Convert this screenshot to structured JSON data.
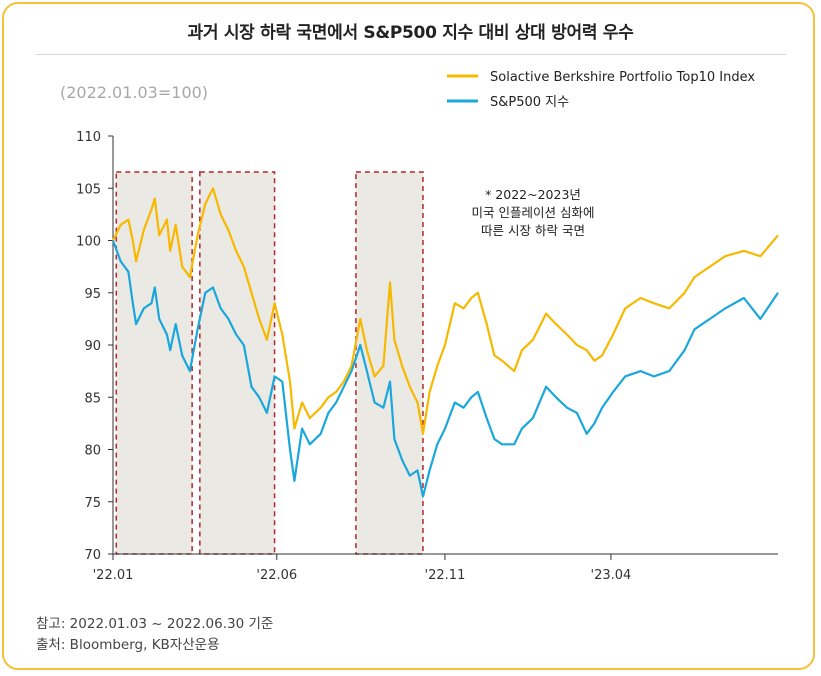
{
  "title": "과거 시장 하락 국면에서 S&P500 지수 대비 상대 방어력 우수",
  "footer": {
    "note": "참고: 2022.01.03 ~ 2022.06.30 기준",
    "source": "출처: Bloomberg, KB자산운용"
  },
  "colors": {
    "border": "#f7c23a",
    "berkshire": "#f7b900",
    "sp500": "#1aa7dc",
    "shade": "#ebe9e4",
    "shade_border": "#b0272d"
  },
  "chart_data": {
    "type": "line",
    "unit_label": "(2022.01.03=100)",
    "ylim": [
      70,
      110
    ],
    "yticks": [
      70,
      75,
      80,
      85,
      90,
      95,
      100,
      105,
      110
    ],
    "xlim": [
      "2022-01-03",
      "2023-08-31"
    ],
    "xticks": [
      {
        "date": "2022-01-03",
        "label": "'22.01"
      },
      {
        "date": "2022-06-01",
        "label": "'22.06"
      },
      {
        "date": "2022-11-01",
        "label": "'22.11"
      },
      {
        "date": "2023-04-01",
        "label": "'23.04"
      }
    ],
    "legend": "top-right",
    "series": [
      {
        "name": "Solactive Berkshire Portfolio Top10 Index",
        "points": [
          [
            "2022-01-03",
            100.0
          ],
          [
            "2022-01-10",
            101.5
          ],
          [
            "2022-01-17",
            102.0
          ],
          [
            "2022-01-21",
            100.0
          ],
          [
            "2022-01-24",
            98.0
          ],
          [
            "2022-01-31",
            101.0
          ],
          [
            "2022-02-07",
            103.0
          ],
          [
            "2022-02-10",
            104.0
          ],
          [
            "2022-02-14",
            100.5
          ],
          [
            "2022-02-21",
            102.0
          ],
          [
            "2022-02-24",
            99.0
          ],
          [
            "2022-03-01",
            101.5
          ],
          [
            "2022-03-07",
            97.5
          ],
          [
            "2022-03-14",
            96.5
          ],
          [
            "2022-03-21",
            100.5
          ],
          [
            "2022-03-28",
            103.5
          ],
          [
            "2022-04-04",
            105.0
          ],
          [
            "2022-04-11",
            102.5
          ],
          [
            "2022-04-18",
            101.0
          ],
          [
            "2022-04-25",
            99.0
          ],
          [
            "2022-05-02",
            97.5
          ],
          [
            "2022-05-09",
            95.0
          ],
          [
            "2022-05-16",
            92.5
          ],
          [
            "2022-05-23",
            90.5
          ],
          [
            "2022-05-30",
            94.0
          ],
          [
            "2022-06-06",
            91.0
          ],
          [
            "2022-06-13",
            86.5
          ],
          [
            "2022-06-17",
            82.0
          ],
          [
            "2022-06-24",
            84.5
          ],
          [
            "2022-07-01",
            83.0
          ],
          [
            "2022-07-11",
            84.0
          ],
          [
            "2022-07-18",
            85.0
          ],
          [
            "2022-07-25",
            85.5
          ],
          [
            "2022-08-01",
            86.5
          ],
          [
            "2022-08-08",
            88.0
          ],
          [
            "2022-08-16",
            92.5
          ],
          [
            "2022-08-22",
            89.5
          ],
          [
            "2022-08-29",
            87.0
          ],
          [
            "2022-09-06",
            88.0
          ],
          [
            "2022-09-12",
            96.0
          ],
          [
            "2022-09-16",
            90.5
          ],
          [
            "2022-09-23",
            88.0
          ],
          [
            "2022-09-30",
            86.0
          ],
          [
            "2022-10-07",
            84.5
          ],
          [
            "2022-10-12",
            81.5
          ],
          [
            "2022-10-18",
            85.5
          ],
          [
            "2022-10-25",
            88.0
          ],
          [
            "2022-11-01",
            90.0
          ],
          [
            "2022-11-10",
            94.0
          ],
          [
            "2022-11-18",
            93.5
          ],
          [
            "2022-11-25",
            94.5
          ],
          [
            "2022-12-01",
            95.0
          ],
          [
            "2022-12-09",
            92.0
          ],
          [
            "2022-12-16",
            89.0
          ],
          [
            "2022-12-23",
            88.5
          ],
          [
            "2023-01-03",
            87.5
          ],
          [
            "2023-01-10",
            89.5
          ],
          [
            "2023-01-20",
            90.5
          ],
          [
            "2023-02-01",
            93.0
          ],
          [
            "2023-02-10",
            92.0
          ],
          [
            "2023-02-20",
            91.0
          ],
          [
            "2023-03-01",
            90.0
          ],
          [
            "2023-03-10",
            89.5
          ],
          [
            "2023-03-17",
            88.5
          ],
          [
            "2023-03-24",
            89.0
          ],
          [
            "2023-04-03",
            91.0
          ],
          [
            "2023-04-14",
            93.5
          ],
          [
            "2023-04-28",
            94.5
          ],
          [
            "2023-05-10",
            94.0
          ],
          [
            "2023-05-24",
            93.5
          ],
          [
            "2023-06-07",
            95.0
          ],
          [
            "2023-06-16",
            96.5
          ],
          [
            "2023-06-30",
            97.5
          ],
          [
            "2023-07-14",
            98.5
          ],
          [
            "2023-07-31",
            99.0
          ],
          [
            "2023-08-15",
            98.5
          ],
          [
            "2023-08-31",
            100.5
          ]
        ]
      },
      {
        "name": "S&P500 지수",
        "points": [
          [
            "2022-01-03",
            100.0
          ],
          [
            "2022-01-10",
            98.0
          ],
          [
            "2022-01-17",
            97.0
          ],
          [
            "2022-01-21",
            94.0
          ],
          [
            "2022-01-24",
            92.0
          ],
          [
            "2022-01-31",
            93.5
          ],
          [
            "2022-02-07",
            94.0
          ],
          [
            "2022-02-10",
            95.5
          ],
          [
            "2022-02-14",
            92.5
          ],
          [
            "2022-02-21",
            91.0
          ],
          [
            "2022-02-24",
            89.5
          ],
          [
            "2022-03-01",
            92.0
          ],
          [
            "2022-03-07",
            89.0
          ],
          [
            "2022-03-14",
            87.5
          ],
          [
            "2022-03-21",
            91.5
          ],
          [
            "2022-03-28",
            95.0
          ],
          [
            "2022-04-04",
            95.5
          ],
          [
            "2022-04-11",
            93.5
          ],
          [
            "2022-04-18",
            92.5
          ],
          [
            "2022-04-25",
            91.0
          ],
          [
            "2022-05-02",
            90.0
          ],
          [
            "2022-05-09",
            86.0
          ],
          [
            "2022-05-16",
            85.0
          ],
          [
            "2022-05-23",
            83.5
          ],
          [
            "2022-05-30",
            87.0
          ],
          [
            "2022-06-06",
            86.5
          ],
          [
            "2022-06-13",
            80.0
          ],
          [
            "2022-06-17",
            77.0
          ],
          [
            "2022-06-24",
            82.0
          ],
          [
            "2022-07-01",
            80.5
          ],
          [
            "2022-07-11",
            81.5
          ],
          [
            "2022-07-18",
            83.5
          ],
          [
            "2022-07-25",
            84.5
          ],
          [
            "2022-08-01",
            86.0
          ],
          [
            "2022-08-08",
            87.5
          ],
          [
            "2022-08-16",
            90.0
          ],
          [
            "2022-08-22",
            87.5
          ],
          [
            "2022-08-29",
            84.5
          ],
          [
            "2022-09-06",
            84.0
          ],
          [
            "2022-09-12",
            86.5
          ],
          [
            "2022-09-16",
            81.0
          ],
          [
            "2022-09-23",
            79.0
          ],
          [
            "2022-09-30",
            77.5
          ],
          [
            "2022-10-07",
            78.0
          ],
          [
            "2022-10-12",
            75.5
          ],
          [
            "2022-10-18",
            78.0
          ],
          [
            "2022-10-25",
            80.5
          ],
          [
            "2022-11-01",
            82.0
          ],
          [
            "2022-11-10",
            84.5
          ],
          [
            "2022-11-18",
            84.0
          ],
          [
            "2022-11-25",
            85.0
          ],
          [
            "2022-12-01",
            85.5
          ],
          [
            "2022-12-09",
            83.0
          ],
          [
            "2022-12-16",
            81.0
          ],
          [
            "2022-12-23",
            80.5
          ],
          [
            "2023-01-03",
            80.5
          ],
          [
            "2023-01-10",
            82.0
          ],
          [
            "2023-01-20",
            83.0
          ],
          [
            "2023-02-01",
            86.0
          ],
          [
            "2023-02-10",
            85.0
          ],
          [
            "2023-02-20",
            84.0
          ],
          [
            "2023-03-01",
            83.5
          ],
          [
            "2023-03-10",
            81.5
          ],
          [
            "2023-03-17",
            82.5
          ],
          [
            "2023-03-24",
            84.0
          ],
          [
            "2023-04-03",
            85.5
          ],
          [
            "2023-04-14",
            87.0
          ],
          [
            "2023-04-28",
            87.5
          ],
          [
            "2023-05-10",
            87.0
          ],
          [
            "2023-05-24",
            87.5
          ],
          [
            "2023-06-07",
            89.5
          ],
          [
            "2023-06-16",
            91.5
          ],
          [
            "2023-06-30",
            92.5
          ],
          [
            "2023-07-14",
            93.5
          ],
          [
            "2023-07-31",
            94.5
          ],
          [
            "2023-08-15",
            92.5
          ],
          [
            "2023-08-31",
            95.0
          ]
        ]
      }
    ],
    "shaded_periods": [
      {
        "start": "2022-01-06",
        "end": "2022-03-16"
      },
      {
        "start": "2022-03-23",
        "end": "2022-05-30"
      },
      {
        "start": "2022-08-12",
        "end": "2022-10-12"
      }
    ],
    "annotation": {
      "lines": [
        "* 2022~2023년",
        "미국 인플레이션 심화에",
        "따른 시장 하락 국면"
      ]
    }
  }
}
